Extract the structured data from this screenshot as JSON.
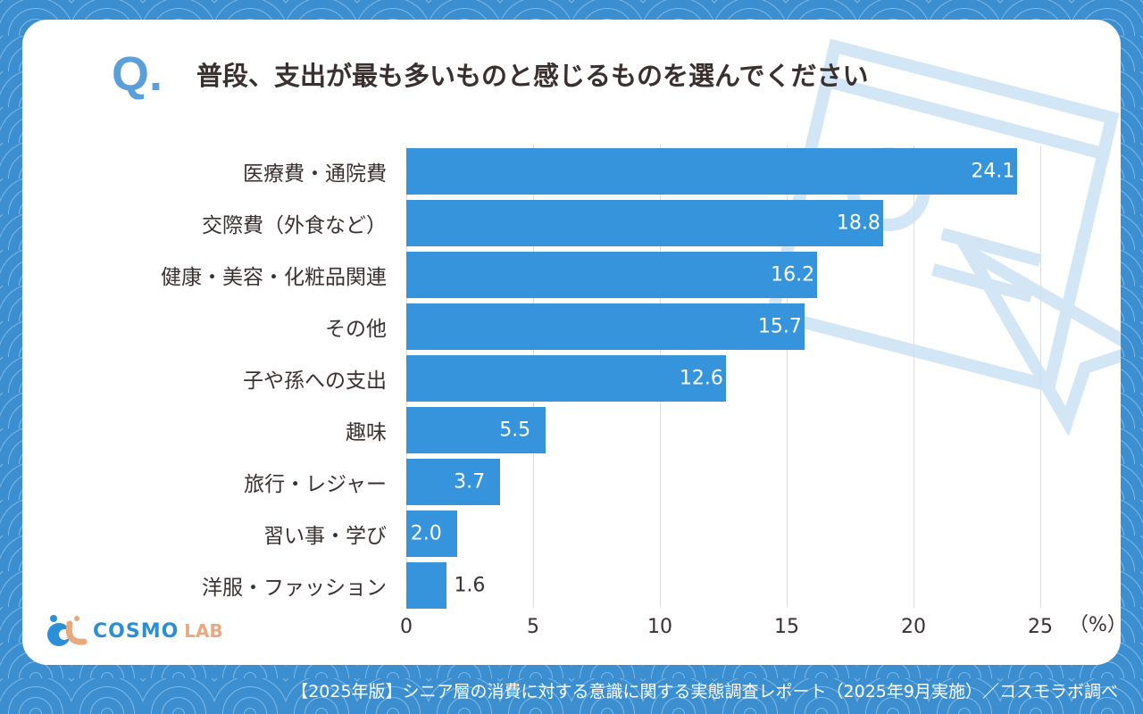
{
  "question_mark": "Q.",
  "title": "普段、支出が最も多いものと感じるものを選んでください",
  "logo": {
    "main": "COSMO",
    "sub": "LAB"
  },
  "footer": "【2025年版】シニア層の消費に対する意識に関する実態調査レポート（2025年9月実施）／コスモラボ調べ",
  "colors": {
    "bar": "#3594dc",
    "background": "#3b8fd1"
  },
  "chart_data": {
    "type": "bar",
    "orientation": "horizontal",
    "categories": [
      "医療費・通院費",
      "交際費（外食など）",
      "健康・美容・化粧品関連",
      "その他",
      "子や孫への支出",
      "趣味",
      "旅行・レジャー",
      "習い事・学び",
      "洋服・ファッション"
    ],
    "values": [
      24.1,
      18.8,
      16.2,
      15.7,
      12.6,
      5.5,
      3.7,
      2.0,
      1.6
    ],
    "xlim": [
      0,
      25
    ],
    "ticks": [
      "0",
      "5",
      "10",
      "15",
      "20",
      "25"
    ],
    "unit": "（%）",
    "grid": true
  }
}
